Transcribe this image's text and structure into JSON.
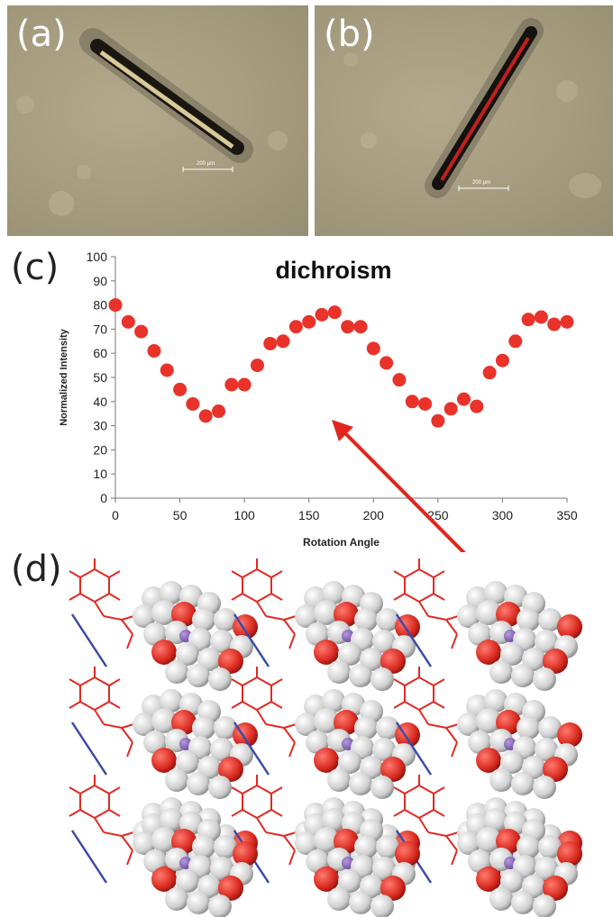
{
  "panels": {
    "a": {
      "label": "(a)",
      "scalebar": "200 μm"
    },
    "b": {
      "label": "(b)",
      "scalebar": "200 μm"
    },
    "c": {
      "label": "(c)"
    },
    "d": {
      "label": "(d)"
    }
  },
  "colors": {
    "marker": "#e8322a",
    "arrow": "#e0261d",
    "crystal_a_fill": "#d9c89a",
    "crystal_b_fill": "#c0201c",
    "phenyl": "#e02a22",
    "bond_line": "#3b4aa8",
    "atom_h": "#d8d8d8",
    "atom_o": "#d8291f",
    "atom_n": "#8466b8"
  },
  "chart_data": {
    "type": "scatter",
    "title": "dichroism",
    "xlabel": "Rotation Angle",
    "ylabel": "Normalized Intensity",
    "xlim": [
      0,
      350
    ],
    "ylim": [
      0,
      100
    ],
    "xticks": [
      0,
      50,
      100,
      150,
      200,
      250,
      300,
      350
    ],
    "yticks": [
      0,
      10,
      20,
      30,
      40,
      50,
      60,
      70,
      80,
      90,
      100
    ],
    "grid": false,
    "x": [
      0,
      10,
      20,
      30,
      40,
      50,
      60,
      70,
      80,
      90,
      100,
      110,
      120,
      130,
      140,
      150,
      160,
      170,
      180,
      190,
      200,
      210,
      220,
      230,
      240,
      250,
      260,
      270,
      280,
      290,
      300,
      310,
      320,
      330,
      340,
      350
    ],
    "y": [
      80,
      73,
      69,
      61,
      53,
      45,
      39,
      34,
      36,
      47,
      47,
      55,
      64,
      65,
      71,
      73,
      76,
      77,
      71,
      71,
      62,
      56,
      49,
      40,
      39,
      32,
      37,
      41,
      38,
      52,
      57,
      65,
      74,
      75,
      72,
      73
    ]
  }
}
